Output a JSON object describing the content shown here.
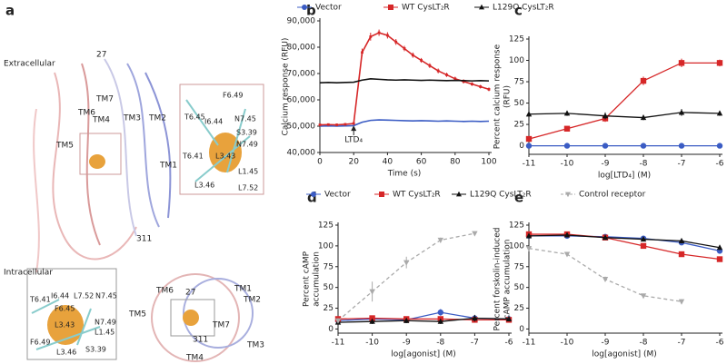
{
  "panel_a": {
    "label": "a",
    "labels": [
      "Extracellular",
      "Intracellular",
      "27",
      "TM7",
      "TM6",
      "TM4",
      "TM3",
      "TM2",
      "TM5",
      "TM1",
      "311",
      "F6.49",
      "T6.45",
      "I6.44",
      "N7.45",
      "S3.39",
      "N7.49",
      "T6.41",
      "L3.43",
      "L1.45",
      "L3.46",
      "L7.52",
      "T6.41",
      "I6.44",
      "L7.52",
      "N7.45",
      "F6.45",
      "L3.43",
      "F6.49",
      "N7.49",
      "L1.45",
      "L3.46",
      "S3.39",
      "TM6",
      "27",
      "TM1",
      "TM2",
      "TM5",
      "TM7",
      "311",
      "TM3",
      "TM4"
    ]
  },
  "chart_data": [
    {
      "type": "line",
      "panel": "b",
      "xlabel": "Time (s)",
      "ylabel": [
        "Calcium response (RFU)"
      ],
      "legend": true,
      "annotation": {
        "text": "LTD₄",
        "x": 20
      },
      "x": [
        0,
        5,
        10,
        15,
        20,
        25,
        30,
        35,
        40,
        45,
        50,
        55,
        60,
        65,
        70,
        75,
        80,
        85,
        90,
        95,
        100
      ],
      "xlim": [
        0,
        100
      ],
      "xticks": [
        0,
        20,
        40,
        60,
        80,
        100
      ],
      "ylim": [
        40000,
        90000
      ],
      "yticks": [
        {
          "value": 40000,
          "label": "40,000"
        },
        {
          "value": 50000,
          "label": "50,000"
        },
        {
          "value": 60000,
          "label": "60,000"
        },
        {
          "value": 70000,
          "label": "70,000"
        },
        {
          "value": 80000,
          "label": "80,000"
        },
        {
          "value": 90000,
          "label": "90,000"
        }
      ],
      "series": [
        {
          "name": "Vector",
          "color": "#3b5cc4",
          "marker": "circle",
          "values": [
            50000,
            50100,
            50000,
            50100,
            50200,
            51500,
            52200,
            52400,
            52300,
            52200,
            52100,
            52000,
            52100,
            52000,
            51900,
            52000,
            51900,
            51800,
            51900,
            51800,
            51900
          ]
        },
        {
          "name": "WT CysLT₂R",
          "color": "#d62728",
          "marker": "square",
          "values": [
            50500,
            50600,
            50500,
            50700,
            51000,
            78000,
            84000,
            85500,
            84500,
            82000,
            79500,
            77000,
            75000,
            73000,
            71000,
            69500,
            68000,
            67000,
            66000,
            65000,
            64000
          ],
          "errors": [
            500,
            400,
            500,
            400,
            500,
            1500,
            1500,
            1200,
            1200,
            1100,
            1000,
            1000,
            900,
            900,
            900,
            800,
            800,
            800,
            700,
            700,
            700
          ]
        },
        {
          "name": "L129Q CysLT₂R",
          "color": "#111111",
          "marker": "triangle",
          "values": [
            66500,
            66600,
            66500,
            66600,
            66700,
            67500,
            68000,
            67800,
            67600,
            67500,
            67600,
            67500,
            67400,
            67500,
            67400,
            67300,
            67400,
            67300,
            67200,
            67300,
            67200
          ]
        }
      ]
    },
    {
      "type": "scatter",
      "panel": "c",
      "xlabel": "log[LTD₄] (M)",
      "ylabel": [
        "Percent calcium response",
        "(RFU)"
      ],
      "legend": false,
      "x": [
        -11,
        -10,
        -9,
        -8,
        -7,
        -6
      ],
      "xlim": [
        -11,
        -6
      ],
      "xticks": [
        -11,
        -10,
        -9,
        -8,
        -7,
        -6
      ],
      "ylim": [
        -10,
        125
      ],
      "yticks": [
        0,
        25,
        50,
        75,
        100,
        125
      ],
      "series": [
        {
          "color": "#3b5cc4",
          "marker": "circle",
          "values": [
            0,
            0,
            0,
            0,
            0,
            0
          ],
          "errors": [
            2,
            2,
            2,
            2,
            2,
            2
          ]
        },
        {
          "color": "#d62728",
          "marker": "square",
          "values": [
            8,
            20,
            32,
            76,
            97,
            97
          ],
          "errors": [
            3,
            3,
            4,
            5,
            5,
            4
          ]
        },
        {
          "color": "#111111",
          "marker": "triangle",
          "values": [
            37,
            38,
            35,
            33,
            39,
            38
          ],
          "errors": [
            8,
            3,
            4,
            3,
            4,
            3
          ]
        }
      ]
    },
    {
      "type": "scatter",
      "panel": "d",
      "xlabel": "log[agonist] (M)",
      "ylabel": [
        "Percent cAMP",
        "accumulation"
      ],
      "legend": true,
      "x": [
        -11,
        -10,
        -9,
        -8,
        -7,
        -6
      ],
      "xlim": [
        -11,
        -6
      ],
      "xticks": [
        -11,
        -10,
        -9,
        -8,
        -7,
        -6
      ],
      "ylim": [
        -5,
        125
      ],
      "yticks": [
        0,
        25,
        50,
        75,
        100,
        125
      ],
      "series": [
        {
          "name": "Vector",
          "color": "#3b5cc4",
          "marker": "circle",
          "values": [
            10,
            12,
            11,
            20,
            13,
            12
          ],
          "errors": [
            3,
            3,
            3,
            4,
            3,
            3
          ]
        },
        {
          "name": "WT CysLT₂R",
          "color": "#d62728",
          "marker": "square",
          "values": [
            12,
            13,
            12,
            12,
            11,
            11
          ],
          "errors": [
            3,
            3,
            3,
            3,
            3,
            3
          ]
        },
        {
          "name": "L129Q CysLT₂R",
          "color": "#111111",
          "marker": "triangle",
          "values": [
            8,
            9,
            10,
            9,
            13,
            12
          ],
          "errors": [
            3,
            3,
            3,
            3,
            4,
            3
          ]
        },
        {
          "name": "Control receptor",
          "color": "#aaaaaa",
          "marker": "triangle-down",
          "dash": true,
          "values": [
            10,
            45,
            80,
            107,
            115,
            null
          ],
          "errors": [
            3,
            12,
            7,
            3,
            2,
            null
          ]
        }
      ]
    },
    {
      "type": "scatter",
      "panel": "e",
      "xlabel": "log[agonist] (M)",
      "ylabel": [
        "Percent forskolin-induced",
        "cAMP accumulation"
      ],
      "legend": false,
      "x": [
        -11,
        -10,
        -9,
        -8,
        -7,
        -6
      ],
      "xlim": [
        -11,
        -6
      ],
      "xticks": [
        -11,
        -10,
        -9,
        -8,
        -7,
        -6
      ],
      "ylim": [
        -5,
        125
      ],
      "yticks": [
        0,
        25,
        50,
        75,
        100,
        125
      ],
      "series": [
        {
          "color": "#3b5cc4",
          "marker": "circle",
          "values": [
            112,
            112,
            111,
            109,
            104,
            94
          ],
          "errors": [
            2,
            2,
            2,
            2,
            3,
            3
          ]
        },
        {
          "color": "#d62728",
          "marker": "square",
          "values": [
            114,
            114,
            110,
            100,
            90,
            84
          ],
          "errors": [
            3,
            3,
            3,
            3,
            3,
            3
          ]
        },
        {
          "color": "#111111",
          "marker": "triangle",
          "values": [
            112,
            113,
            110,
            108,
            106,
            98
          ],
          "errors": [
            2,
            2,
            2,
            2,
            3,
            3
          ]
        },
        {
          "color": "#aaaaaa",
          "marker": "triangle-down",
          "dash": true,
          "values": [
            97,
            90,
            60,
            40,
            33,
            null
          ],
          "errors": [
            2,
            2,
            3,
            2,
            3,
            null
          ]
        }
      ]
    }
  ]
}
